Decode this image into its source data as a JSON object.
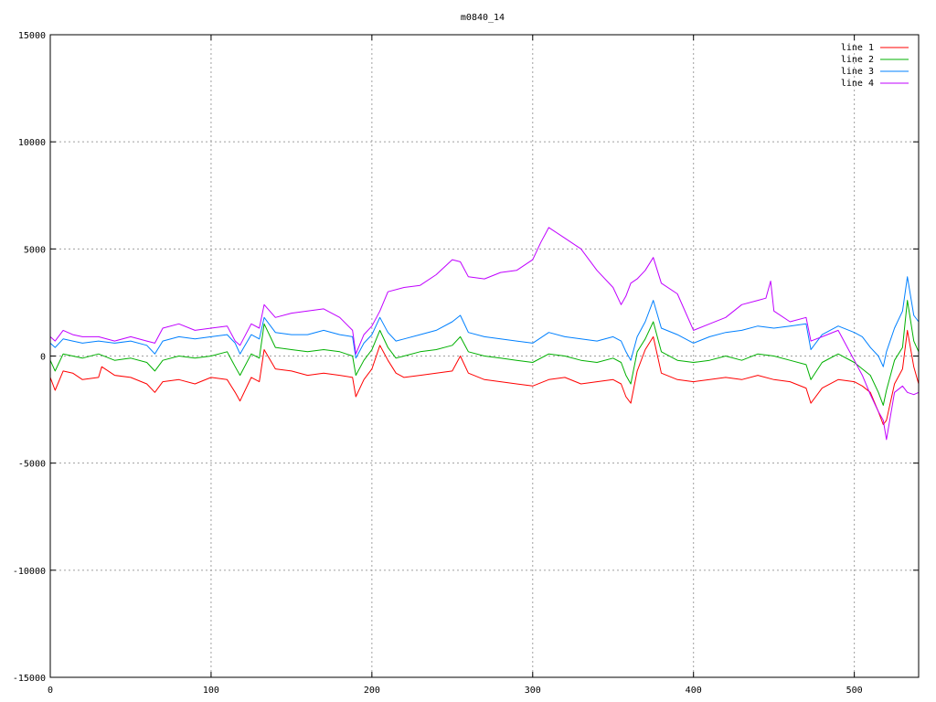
{
  "chart_data": {
    "type": "line",
    "title": "m0840_14",
    "xlim": [
      0,
      540
    ],
    "ylim": [
      -15000,
      15000
    ],
    "x_ticks": [
      0,
      100,
      200,
      300,
      400,
      500
    ],
    "y_ticks": [
      -15000,
      -10000,
      -5000,
      0,
      5000,
      10000,
      15000
    ],
    "grid": true,
    "legend_position": "top-right",
    "series": [
      {
        "name": "line 1",
        "color": "#ff0000",
        "x": [
          0,
          3,
          8,
          14,
          20,
          30,
          32,
          40,
          50,
          60,
          65,
          70,
          80,
          90,
          100,
          110,
          115,
          118,
          125,
          130,
          133,
          140,
          150,
          160,
          170,
          180,
          188,
          190,
          195,
          200,
          205,
          210,
          215,
          220,
          230,
          240,
          250,
          255,
          260,
          270,
          280,
          290,
          300,
          310,
          320,
          330,
          340,
          350,
          355,
          358,
          361,
          365,
          370,
          375,
          380,
          390,
          400,
          410,
          420,
          430,
          440,
          450,
          460,
          470,
          473,
          480,
          490,
          500,
          505,
          510,
          515,
          518,
          520,
          525,
          530,
          533,
          537,
          540
        ],
        "y": [
          -1000,
          -1600,
          -700,
          -800,
          -1100,
          -1000,
          -500,
          -900,
          -1000,
          -1300,
          -1700,
          -1200,
          -1100,
          -1300,
          -1000,
          -1100,
          -1700,
          -2100,
          -1000,
          -1200,
          300,
          -600,
          -700,
          -900,
          -800,
          -900,
          -1000,
          -1900,
          -1100,
          -600,
          500,
          -200,
          -800,
          -1000,
          -900,
          -800,
          -700,
          0,
          -800,
          -1100,
          -1200,
          -1300,
          -1400,
          -1100,
          -1000,
          -1300,
          -1200,
          -1100,
          -1300,
          -1900,
          -2200,
          -700,
          300,
          900,
          -800,
          -1100,
          -1200,
          -1100,
          -1000,
          -1100,
          -900,
          -1100,
          -1200,
          -1500,
          -2200,
          -1500,
          -1100,
          -1200,
          -1400,
          -1700,
          -2600,
          -3200,
          -3000,
          -1300,
          -600,
          1200,
          -500,
          -1300
        ]
      },
      {
        "name": "line 2",
        "color": "#00b000",
        "x": [
          0,
          3,
          8,
          14,
          20,
          30,
          40,
          50,
          60,
          65,
          70,
          80,
          90,
          100,
          110,
          115,
          118,
          125,
          130,
          133,
          140,
          150,
          160,
          170,
          180,
          188,
          190,
          195,
          200,
          205,
          210,
          215,
          220,
          230,
          240,
          250,
          255,
          260,
          270,
          280,
          290,
          300,
          310,
          320,
          330,
          340,
          350,
          355,
          358,
          361,
          365,
          370,
          375,
          380,
          390,
          400,
          410,
          420,
          430,
          440,
          450,
          460,
          470,
          473,
          480,
          490,
          500,
          505,
          510,
          515,
          518,
          520,
          525,
          530,
          533,
          537,
          540
        ],
        "y": [
          -200,
          -700,
          100,
          0,
          -100,
          100,
          -200,
          -100,
          -300,
          -700,
          -200,
          0,
          -100,
          0,
          200,
          -500,
          -900,
          100,
          -100,
          1500,
          400,
          300,
          200,
          300,
          200,
          0,
          -900,
          -200,
          300,
          1200,
          400,
          -100,
          0,
          200,
          300,
          500,
          900,
          200,
          0,
          -100,
          -200,
          -300,
          100,
          0,
          -200,
          -300,
          -100,
          -300,
          -900,
          -1300,
          200,
          800,
          1600,
          200,
          -200,
          -300,
          -200,
          0,
          -200,
          100,
          0,
          -200,
          -400,
          -1100,
          -300,
          100,
          -300,
          -600,
          -900,
          -1700,
          -2300,
          -1600,
          -200,
          400,
          2600,
          700,
          200
        ]
      },
      {
        "name": "line 3",
        "color": "#0080ff",
        "x": [
          0,
          3,
          8,
          14,
          20,
          30,
          40,
          50,
          60,
          65,
          70,
          80,
          90,
          100,
          110,
          115,
          118,
          125,
          130,
          133,
          140,
          150,
          160,
          170,
          180,
          188,
          190,
          195,
          200,
          205,
          210,
          215,
          220,
          230,
          240,
          250,
          255,
          260,
          270,
          280,
          290,
          300,
          310,
          320,
          330,
          340,
          350,
          355,
          358,
          361,
          365,
          370,
          375,
          380,
          390,
          400,
          410,
          420,
          430,
          440,
          450,
          460,
          470,
          473,
          480,
          490,
          500,
          505,
          510,
          515,
          518,
          520,
          525,
          530,
          533,
          537,
          540
        ],
        "y": [
          600,
          400,
          800,
          700,
          600,
          700,
          600,
          700,
          500,
          100,
          700,
          900,
          800,
          900,
          1000,
          600,
          100,
          1000,
          800,
          1800,
          1100,
          1000,
          1000,
          1200,
          1000,
          900,
          -100,
          600,
          1000,
          1800,
          1100,
          700,
          800,
          1000,
          1200,
          1600,
          1900,
          1100,
          900,
          800,
          700,
          600,
          1100,
          900,
          800,
          700,
          900,
          700,
          200,
          -200,
          900,
          1600,
          2600,
          1300,
          1000,
          600,
          900,
          1100,
          1200,
          1400,
          1300,
          1400,
          1500,
          300,
          1000,
          1400,
          1100,
          900,
          400,
          0,
          -500,
          200,
          1300,
          2100,
          3700,
          1900,
          1600
        ]
      },
      {
        "name": "line 4",
        "color": "#c000ff",
        "x": [
          0,
          3,
          8,
          14,
          20,
          30,
          40,
          50,
          60,
          65,
          70,
          80,
          90,
          100,
          110,
          115,
          118,
          125,
          130,
          133,
          140,
          150,
          160,
          170,
          180,
          188,
          190,
          195,
          200,
          205,
          210,
          220,
          230,
          240,
          250,
          255,
          260,
          270,
          280,
          290,
          300,
          305,
          310,
          320,
          330,
          340,
          350,
          355,
          358,
          361,
          365,
          370,
          375,
          380,
          390,
          400,
          410,
          420,
          430,
          440,
          445,
          448,
          450,
          460,
          470,
          473,
          480,
          490,
          500,
          505,
          510,
          515,
          518,
          520,
          525,
          530,
          533,
          537,
          540
        ],
        "y": [
          900,
          700,
          1200,
          1000,
          900,
          900,
          700,
          900,
          700,
          600,
          1300,
          1500,
          1200,
          1300,
          1400,
          700,
          500,
          1500,
          1300,
          2400,
          1800,
          2000,
          2100,
          2200,
          1800,
          1200,
          100,
          1000,
          1400,
          2100,
          3000,
          3200,
          3300,
          3800,
          4500,
          4400,
          3700,
          3600,
          3900,
          4000,
          4500,
          5300,
          6000,
          5500,
          5000,
          4000,
          3200,
          2400,
          2800,
          3400,
          3600,
          4000,
          4600,
          3400,
          2900,
          1200,
          1500,
          1800,
          2400,
          2600,
          2700,
          3500,
          2100,
          1600,
          1800,
          700,
          900,
          1200,
          -200,
          -900,
          -1800,
          -2600,
          -3000,
          -3900,
          -1700,
          -1400,
          -1700,
          -1800,
          -1700
        ]
      }
    ]
  }
}
